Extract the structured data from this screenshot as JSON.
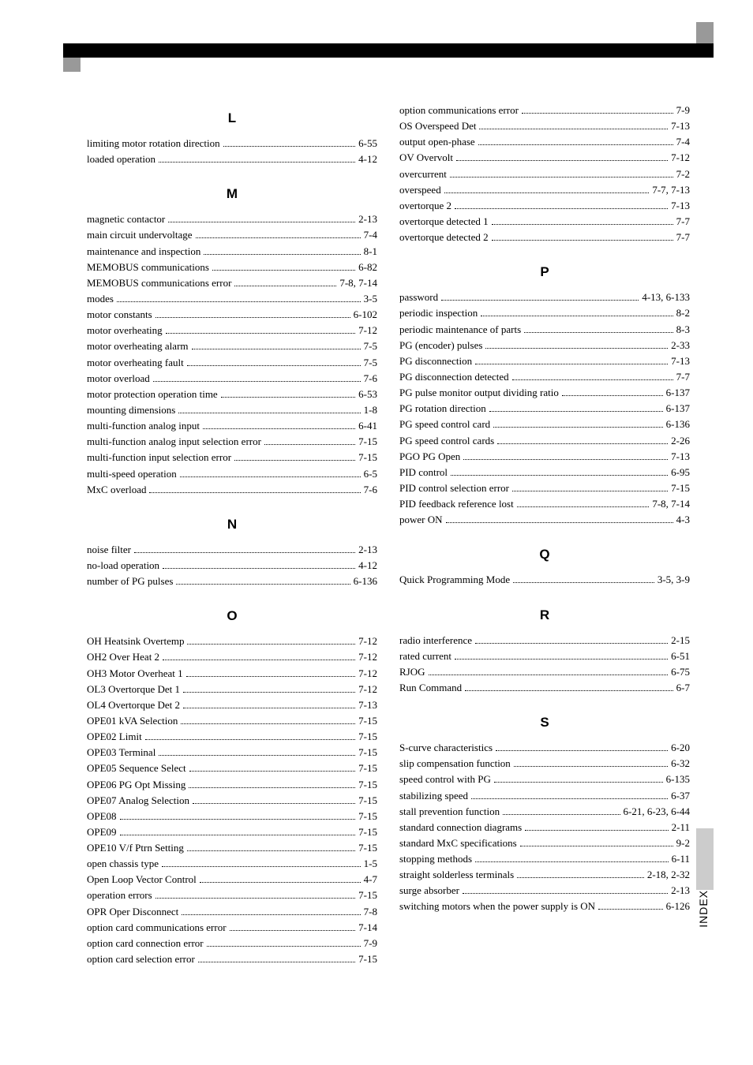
{
  "side_label": "INDEX",
  "left_column": [
    {
      "type": "letter",
      "text": "L",
      "first": true
    },
    {
      "type": "entry",
      "label": "limiting motor rotation direction",
      "page": "6-55"
    },
    {
      "type": "entry",
      "label": "loaded operation",
      "page": "4-12"
    },
    {
      "type": "letter",
      "text": "M"
    },
    {
      "type": "entry",
      "label": "magnetic contactor",
      "page": "2-13"
    },
    {
      "type": "entry",
      "label": "main circuit undervoltage",
      "page": "7-4"
    },
    {
      "type": "entry",
      "label": "maintenance and inspection",
      "page": "8-1"
    },
    {
      "type": "entry",
      "label": "MEMOBUS communications",
      "page": "6-82"
    },
    {
      "type": "entry",
      "label": "MEMOBUS communications error",
      "page": "7-8, 7-14"
    },
    {
      "type": "entry",
      "label": "modes",
      "page": "3-5"
    },
    {
      "type": "entry",
      "label": "motor constants",
      "page": "6-102"
    },
    {
      "type": "entry",
      "label": "motor overheating",
      "page": "7-12"
    },
    {
      "type": "entry",
      "label": "motor overheating alarm",
      "page": "7-5"
    },
    {
      "type": "entry",
      "label": "motor overheating fault",
      "page": "7-5"
    },
    {
      "type": "entry",
      "label": "motor overload",
      "page": "7-6"
    },
    {
      "type": "entry",
      "label": "motor protection operation time",
      "page": "6-53"
    },
    {
      "type": "entry",
      "label": "mounting dimensions",
      "page": "1-8"
    },
    {
      "type": "entry",
      "label": "multi-function analog input",
      "page": "6-41"
    },
    {
      "type": "entry",
      "label": "multi-function analog input selection error",
      "page": "7-15"
    },
    {
      "type": "entry",
      "label": "multi-function input selection error",
      "page": "7-15"
    },
    {
      "type": "entry",
      "label": "multi-speed operation",
      "page": "6-5"
    },
    {
      "type": "entry",
      "label": "MxC overload",
      "page": "7-6"
    },
    {
      "type": "letter",
      "text": "N"
    },
    {
      "type": "entry",
      "label": "noise filter",
      "page": "2-13"
    },
    {
      "type": "entry",
      "label": "no-load operation",
      "page": "4-12"
    },
    {
      "type": "entry",
      "label": "number of PG pulses",
      "page": "6-136"
    },
    {
      "type": "letter",
      "text": "O"
    },
    {
      "type": "entry",
      "label": "OH Heatsink Overtemp",
      "page": "7-12"
    },
    {
      "type": "entry",
      "label": "OH2 Over Heat 2",
      "page": "7-12"
    },
    {
      "type": "entry",
      "label": "OH3 Motor Overheat 1",
      "page": "7-12"
    },
    {
      "type": "entry",
      "label": "OL3 Overtorque Det 1",
      "page": "7-12"
    },
    {
      "type": "entry",
      "label": "OL4 Overtorque Det 2",
      "page": "7-13"
    },
    {
      "type": "entry",
      "label": "OPE01 kVA Selection",
      "page": "7-15"
    },
    {
      "type": "entry",
      "label": "OPE02 Limit",
      "page": "7-15"
    },
    {
      "type": "entry",
      "label": "OPE03 Terminal",
      "page": "7-15"
    },
    {
      "type": "entry",
      "label": "OPE05 Sequence Select",
      "page": "7-15"
    },
    {
      "type": "entry",
      "label": "OPE06 PG Opt Missing",
      "page": "7-15"
    },
    {
      "type": "entry",
      "label": "OPE07 Analog Selection",
      "page": "7-15"
    },
    {
      "type": "entry",
      "label": "OPE08",
      "page": "7-15"
    },
    {
      "type": "entry",
      "label": "OPE09",
      "page": "7-15"
    },
    {
      "type": "entry",
      "label": "OPE10 V/f Ptrn Setting",
      "page": "7-15"
    },
    {
      "type": "entry",
      "label": "open chassis type",
      "page": "1-5"
    },
    {
      "type": "entry",
      "label": "Open Loop Vector Control",
      "page": "4-7"
    },
    {
      "type": "entry",
      "label": "operation errors",
      "page": "7-15"
    },
    {
      "type": "entry",
      "label": "OPR Oper Disconnect",
      "page": "7-8"
    },
    {
      "type": "entry",
      "label": "option card communications error",
      "page": "7-14"
    },
    {
      "type": "entry",
      "label": "option card connection error",
      "page": "7-9"
    },
    {
      "type": "entry",
      "label": "option card selection error",
      "page": "7-15"
    }
  ],
  "right_column": [
    {
      "type": "entry",
      "label": "option communications error",
      "page": "7-9"
    },
    {
      "type": "entry",
      "label": "OS Overspeed Det",
      "page": "7-13"
    },
    {
      "type": "entry",
      "label": "output open-phase",
      "page": "7-4"
    },
    {
      "type": "entry",
      "label": "OV Overvolt",
      "page": "7-12"
    },
    {
      "type": "entry",
      "label": "overcurrent",
      "page": "7-2"
    },
    {
      "type": "entry",
      "label": "overspeed",
      "page": "7-7, 7-13"
    },
    {
      "type": "entry",
      "label": "overtorque 2",
      "page": "7-13"
    },
    {
      "type": "entry",
      "label": "overtorque detected 1",
      "page": "7-7"
    },
    {
      "type": "entry",
      "label": "overtorque detected 2",
      "page": "7-7"
    },
    {
      "type": "letter",
      "text": "P"
    },
    {
      "type": "entry",
      "label": "password",
      "page": "4-13, 6-133"
    },
    {
      "type": "entry",
      "label": "periodic inspection",
      "page": "8-2"
    },
    {
      "type": "entry",
      "label": "periodic maintenance of parts",
      "page": "8-3"
    },
    {
      "type": "entry",
      "label": "PG (encoder) pulses",
      "page": "2-33"
    },
    {
      "type": "entry",
      "label": "PG disconnection",
      "page": "7-13"
    },
    {
      "type": "entry",
      "label": "PG disconnection detected",
      "page": "7-7"
    },
    {
      "type": "entry",
      "label": "PG pulse monitor output dividing ratio",
      "page": "6-137"
    },
    {
      "type": "entry",
      "label": "PG rotation direction",
      "page": "6-137"
    },
    {
      "type": "entry",
      "label": "PG speed control card",
      "page": "6-136"
    },
    {
      "type": "entry",
      "label": "PG speed control cards",
      "page": "2-26"
    },
    {
      "type": "entry",
      "label": "PGO PG Open",
      "page": "7-13"
    },
    {
      "type": "entry",
      "label": "PID control",
      "page": "6-95"
    },
    {
      "type": "entry",
      "label": "PID control selection error",
      "page": "7-15"
    },
    {
      "type": "entry",
      "label": "PID feedback reference lost",
      "page": "7-8, 7-14"
    },
    {
      "type": "entry",
      "label": "power ON",
      "page": "4-3"
    },
    {
      "type": "letter",
      "text": "Q"
    },
    {
      "type": "entry",
      "label": "Quick Programming Mode",
      "page": "3-5, 3-9"
    },
    {
      "type": "letter",
      "text": "R"
    },
    {
      "type": "entry",
      "label": "radio interference",
      "page": "2-15"
    },
    {
      "type": "entry",
      "label": "rated current",
      "page": "6-51"
    },
    {
      "type": "entry",
      "label": "RJOG",
      "page": "6-75"
    },
    {
      "type": "entry",
      "label": "Run Command",
      "page": "6-7"
    },
    {
      "type": "letter",
      "text": "S"
    },
    {
      "type": "entry",
      "label": "S-curve characteristics",
      "page": "6-20"
    },
    {
      "type": "entry",
      "label": "slip compensation function",
      "page": "6-32"
    },
    {
      "type": "entry",
      "label": "speed control with PG",
      "page": "6-135"
    },
    {
      "type": "entry",
      "label": "stabilizing speed",
      "page": "6-37"
    },
    {
      "type": "entry",
      "label": "stall prevention function",
      "page": "6-21, 6-23, 6-44"
    },
    {
      "type": "entry",
      "label": "standard connection diagrams",
      "page": "2-11"
    },
    {
      "type": "entry",
      "label": "standard MxC specifications",
      "page": "9-2"
    },
    {
      "type": "entry",
      "label": "stopping methods",
      "page": "6-11"
    },
    {
      "type": "entry",
      "label": "straight solderless terminals",
      "page": "2-18, 2-32"
    },
    {
      "type": "entry",
      "label": "surge absorber",
      "page": "2-13"
    },
    {
      "type": "entry",
      "label": "switching motors when the power supply is ON",
      "page": "6-126"
    }
  ]
}
